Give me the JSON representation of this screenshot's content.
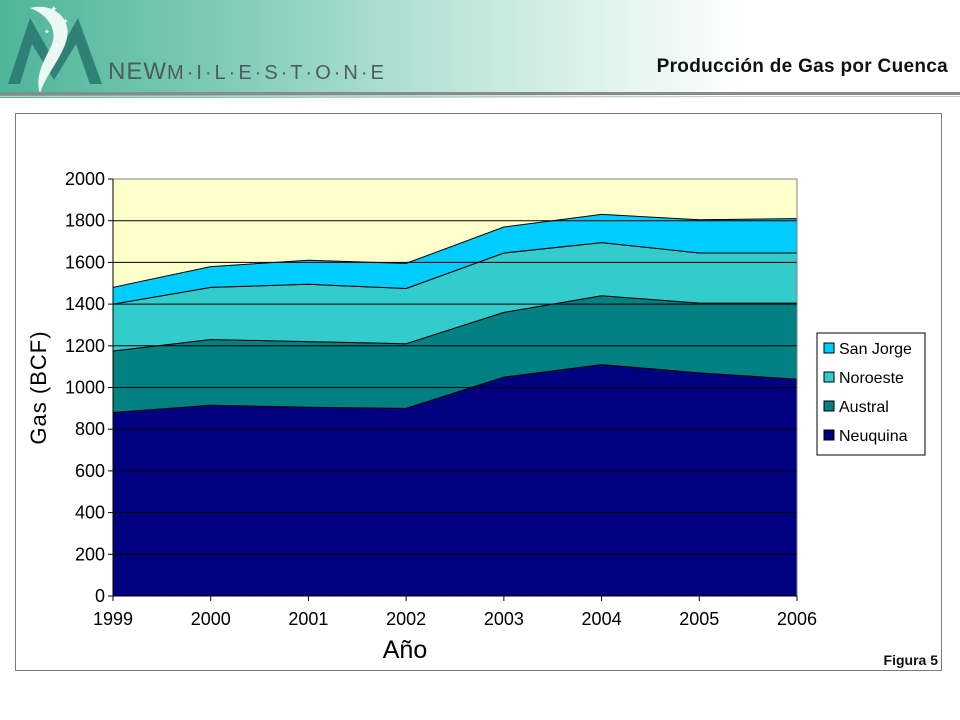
{
  "header": {
    "brand_new": "NEW",
    "brand_rest": "M·I·L·E·S·T·O·N·E",
    "title": "Producción de Gas por Cuenca"
  },
  "figure_label": "Figura 5",
  "colors": {
    "neuquina": "#000080",
    "austral": "#008080",
    "noroeste": "#33cccc",
    "san_jorge": "#00ccff",
    "plot_background": "#ffffcc"
  },
  "chart_data": {
    "type": "area",
    "stacked": true,
    "title": "",
    "xlabel": "Año",
    "ylabel": "Gas (BCF)",
    "x": [
      1999,
      2000,
      2001,
      2002,
      2003,
      2004,
      2005,
      2006
    ],
    "ylim": [
      0,
      2000
    ],
    "yticks": [
      0,
      200,
      400,
      600,
      800,
      1000,
      1200,
      1400,
      1600,
      1800,
      2000
    ],
    "grid": true,
    "legend_position": "right",
    "series": [
      {
        "name": "Neuquina",
        "values": [
          880,
          915,
          905,
          900,
          1050,
          1110,
          1070,
          1040
        ]
      },
      {
        "name": "Austral",
        "values": [
          295,
          315,
          315,
          310,
          310,
          330,
          335,
          365
        ]
      },
      {
        "name": "Noroeste",
        "values": [
          225,
          250,
          275,
          265,
          285,
          255,
          240,
          240
        ]
      },
      {
        "name": "San Jorge",
        "values": [
          80,
          100,
          115,
          120,
          125,
          135,
          160,
          165
        ]
      }
    ],
    "legend_order": [
      "San Jorge",
      "Noroeste",
      "Austral",
      "Neuquina"
    ]
  }
}
